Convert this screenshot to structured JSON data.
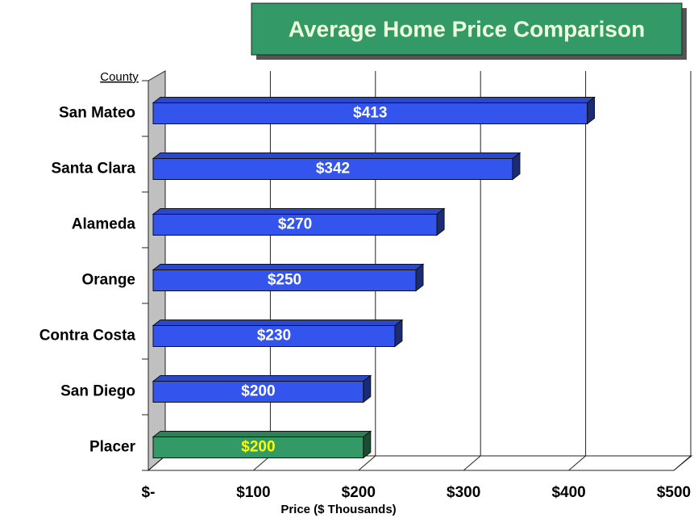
{
  "chart_data": {
    "type": "bar3d",
    "title": "Average Home Price Comparison",
    "y_axis_label": "County",
    "x_axis_label": "Price ($ Thousands)",
    "categories": [
      "San Mateo",
      "Santa Clara",
      "Alameda",
      "Orange",
      "Contra Costa",
      "San Diego",
      "Placer"
    ],
    "values": [
      413,
      342,
      270,
      250,
      230,
      200,
      200
    ],
    "value_labels": [
      "$413",
      "$342",
      "$270",
      "$250",
      "$230",
      "$200",
      "$200"
    ],
    "colors": [
      "#3355ee",
      "#3355ee",
      "#3355ee",
      "#3355ee",
      "#3355ee",
      "#3355ee",
      "#339966"
    ],
    "label_colors": [
      "#ffffff",
      "#ffffff",
      "#ffffff",
      "#ffffff",
      "#ffffff",
      "#ffffff",
      "#ffff00"
    ],
    "xlim": [
      0,
      500
    ],
    "xticks": [
      {
        "value": 0,
        "label": "$-"
      },
      {
        "value": 100,
        "label": "$100"
      },
      {
        "value": 200,
        "label": "$200"
      },
      {
        "value": 300,
        "label": "$300"
      },
      {
        "value": 400,
        "label": "$400"
      },
      {
        "value": 500,
        "label": "$500"
      }
    ],
    "grid": true
  }
}
